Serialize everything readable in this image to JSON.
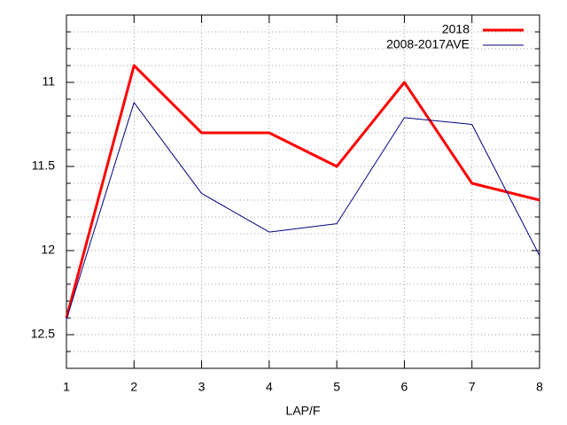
{
  "chart_data": {
    "type": "line",
    "x_label": "LAP/F",
    "x": [
      1,
      2,
      3,
      4,
      5,
      6,
      7,
      8
    ],
    "xlim": [
      1,
      8
    ],
    "xticks": [
      1,
      2,
      3,
      4,
      5,
      6,
      7,
      8
    ],
    "ylim": [
      10.6,
      12.7
    ],
    "y_reversed": true,
    "yticks": [
      11,
      11.5,
      12,
      12.5
    ],
    "y_minor_ticks": [
      10.6,
      10.7,
      10.8,
      10.9,
      11.1,
      11.2,
      11.3,
      11.4,
      11.6,
      11.7,
      11.8,
      11.9,
      12.1,
      12.2,
      12.3,
      12.4,
      12.6,
      12.7
    ],
    "grid": true,
    "legend": "top-right",
    "series": [
      {
        "name": "2018",
        "color": "#ff0000",
        "width": 3,
        "values": [
          12.4,
          10.9,
          11.3,
          11.3,
          11.5,
          11.0,
          11.6,
          11.7
        ]
      },
      {
        "name": "2008-2017AVE",
        "color": "#000080",
        "width": 1,
        "values": [
          12.41,
          11.12,
          11.66,
          11.89,
          11.84,
          11.21,
          11.25,
          12.03
        ]
      }
    ]
  }
}
